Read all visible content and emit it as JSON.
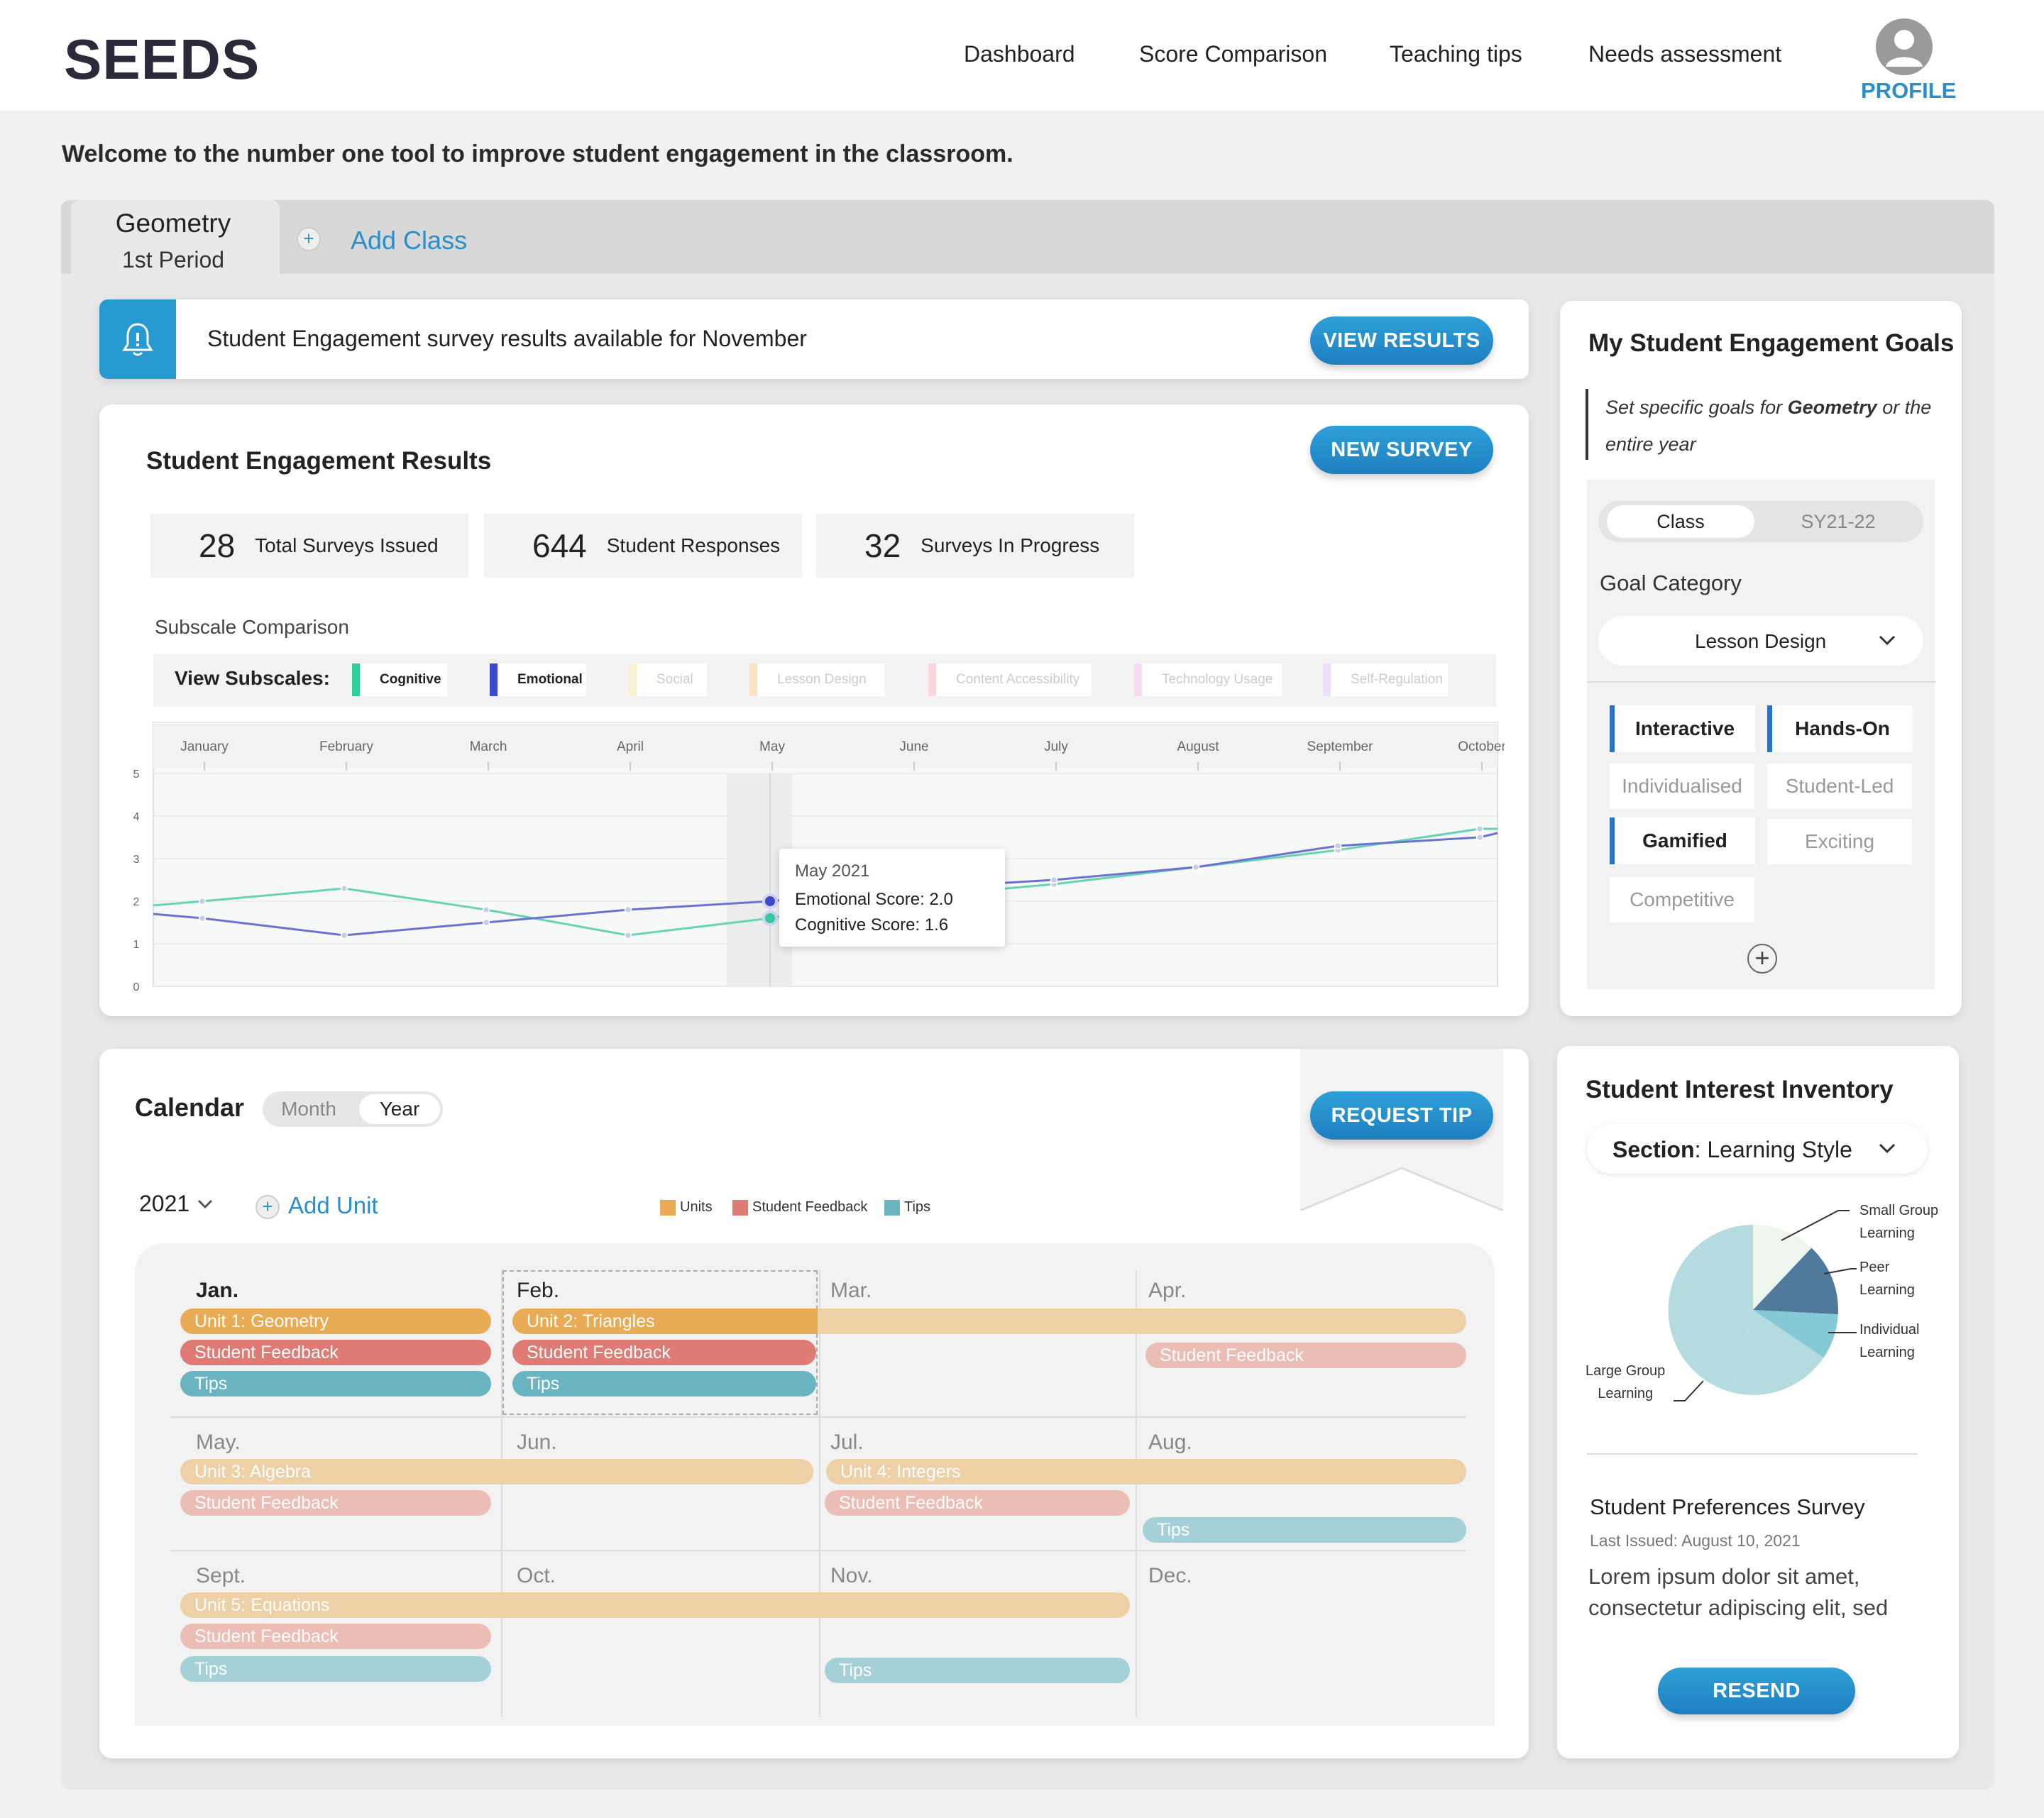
{
  "header": {
    "logo": "SEEDS",
    "nav": [
      "Dashboard",
      "Score Comparison",
      "Teaching tips",
      "Needs assessment"
    ],
    "profile_label": "PROFILE"
  },
  "welcome": "Welcome to the number one tool to improve student engagement in the classroom.",
  "tabs": {
    "active_title": "Geometry",
    "active_subtitle": "1st Period",
    "add_class": "Add Class"
  },
  "notification": {
    "text": "Student Engagement survey results available for November",
    "button": "VIEW RESULTS"
  },
  "results": {
    "title": "Student Engagement Results",
    "new_survey": "NEW SURVEY",
    "stats": [
      {
        "value": "28",
        "label": "Total Surveys Issued"
      },
      {
        "value": "644",
        "label": "Student Responses"
      },
      {
        "value": "32",
        "label": "Surveys In Progress"
      }
    ],
    "subscale_heading": "Subscale Comparison",
    "view_subscales": "View Subscales:",
    "subscales": [
      "Cognitive",
      "Emotional",
      "Social",
      "Lesson Design",
      "Content Accessibility",
      "Technology Usage",
      "Self-Regulation"
    ],
    "colors": {
      "cognitive": "#5fd3ae",
      "emotional": "#3d49c8",
      "social": "#fbf0d2",
      "lesson_design": "#fbe3c8",
      "content_accessibility": "#fad6dc",
      "technology_usage": "#f4dcf3",
      "self_regulation": "#ede0f7"
    },
    "tooltip": {
      "title": "May 2021",
      "emotional": "Emotional Score: 2.0",
      "cognitive": "Cognitive Score: 1.6"
    }
  },
  "chart_data": {
    "type": "line",
    "categories": [
      "January",
      "February",
      "March",
      "April",
      "May",
      "June",
      "July",
      "August",
      "September",
      "October"
    ],
    "ylim": [
      0,
      5
    ],
    "yticks": [
      "5",
      "4",
      "3",
      "2",
      "1",
      "0"
    ],
    "series": [
      {
        "name": "Cognitive",
        "values": [
          2.0,
          2.3,
          1.8,
          1.2,
          1.6,
          2.1,
          2.4,
          2.8,
          3.2,
          3.7
        ]
      },
      {
        "name": "Emotional",
        "values": [
          1.6,
          1.2,
          1.5,
          1.8,
          2.0,
          2.3,
          2.5,
          2.8,
          3.3,
          3.5
        ]
      }
    ]
  },
  "goals": {
    "title": "My Student Engagement Goals",
    "desc_pre": "Set specific goals for ",
    "desc_bold": "Geometry",
    "desc_post": " or the entire year",
    "toggle": [
      "Class",
      "SY21-22"
    ],
    "category_label": "Goal Category",
    "category_value": "Lesson Design",
    "tags": [
      "Interactive",
      "Hands-On",
      "Individualised",
      "Student-Led",
      "Gamified",
      "Exciting",
      "Competitive"
    ]
  },
  "calendar": {
    "title": "Calendar",
    "toggle": [
      "Month",
      "Year"
    ],
    "year": "2021",
    "add_unit": "Add Unit",
    "request_tip": "REQUEST TIP",
    "legend": [
      "Units",
      "Student Feedback",
      "Tips"
    ],
    "colors": {
      "units": "#e9ac55",
      "feedback": "#dd7b74",
      "tips": "#6ab4c2",
      "units_light": "#edd0a6",
      "feedback_light": "#ecbdb5",
      "tips_light": "#a4d1d8"
    },
    "months": [
      "Jan.",
      "Feb.",
      "Mar.",
      "Apr.",
      "May.",
      "Jun.",
      "Jul.",
      "Aug.",
      "Sept.",
      "Oct.",
      "Nov.",
      "Dec."
    ],
    "bars": {
      "unit1": "Unit 1: Geometry",
      "unit2": "Unit 2: Triangles",
      "unit3": "Unit 3: Algebra",
      "unit4": "Unit 4: Integers",
      "unit5": "Unit 5: Equations",
      "feedback": "Student Feedback",
      "tips": "Tips"
    }
  },
  "interest": {
    "title": "Student Interest Inventory",
    "section_label": "Section",
    "section_value": "Learning Style",
    "pie_labels": {
      "small": "Small Group Learning",
      "peer": "Peer Learning",
      "individual": "Individual Learning",
      "large": "Large Group Learning"
    },
    "pie_label_lines": {
      "small": [
        "Small Group",
        "Learning"
      ],
      "peer": [
        "Peer",
        "Learning"
      ],
      "individual": [
        "Individual",
        "Learning"
      ],
      "large": [
        "Large Group",
        "Learning"
      ]
    },
    "pie_colors": {
      "small": "#eef5ec",
      "peer": "#4f7a9c",
      "individual": "#86c9d6",
      "large": "#b4dce0"
    },
    "prefs_title": "Student Preferences Survey",
    "prefs_date": "Last Issued: August 10, 2021",
    "prefs_body": "Lorem ipsum dolor sit amet, consectetur adipiscing elit, sed",
    "resend": "RESEND"
  }
}
